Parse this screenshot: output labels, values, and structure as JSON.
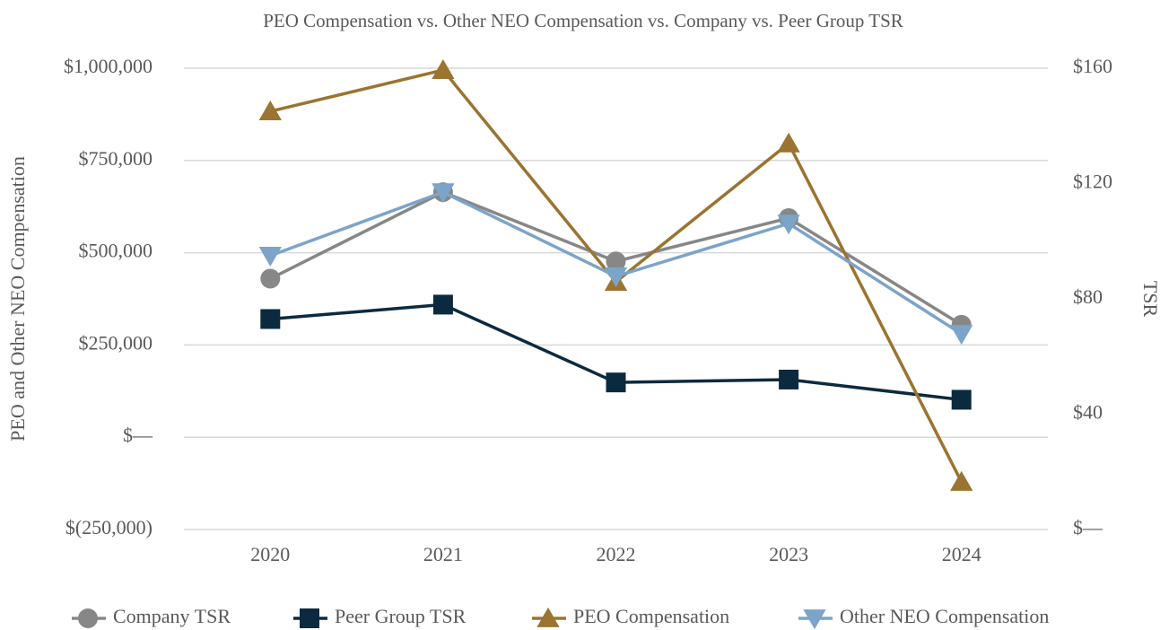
{
  "chart_data": {
    "type": "line",
    "title": "PEO Compensation vs. Other NEO Compensation vs. Company vs. Peer Group TSR",
    "ylabel": "PEO and Other NEO Compensation",
    "y2label": "TSR",
    "categories": [
      "2020",
      "2021",
      "2022",
      "2023",
      "2024"
    ],
    "ylim": [
      -250000,
      1000000
    ],
    "yticks": [
      {
        "value": -250000,
        "label": "$(250,000)"
      },
      {
        "value": 0,
        "label": "$—"
      },
      {
        "value": 250000,
        "label": "$250,000"
      },
      {
        "value": 500000,
        "label": "$500,000"
      },
      {
        "value": 750000,
        "label": "$750,000"
      },
      {
        "value": 1000000,
        "label": "$1,000,000"
      }
    ],
    "y2lim": [
      0,
      160
    ],
    "y2ticks": [
      {
        "value": 0,
        "label": "$—"
      },
      {
        "value": 40,
        "label": "$40"
      },
      {
        "value": 80,
        "label": "$80"
      },
      {
        "value": 120,
        "label": "$120"
      },
      {
        "value": 160,
        "label": "$160"
      }
    ],
    "grid": true,
    "legend": "bottom",
    "series": [
      {
        "name": "Company TSR",
        "color": "#878787",
        "marker": "circle",
        "axis": "y2",
        "values": [
          87,
          117,
          93,
          108,
          71
        ]
      },
      {
        "name": "Peer Group TSR",
        "color": "#0c2a3f",
        "marker": "square",
        "axis": "y2",
        "values": [
          73,
          78,
          51,
          52,
          45
        ]
      },
      {
        "name": "PEO Compensation",
        "color": "#9a7430",
        "marker": "triangle-up",
        "values": [
          883000,
          995000,
          421000,
          796000,
          -121000
        ]
      },
      {
        "name": "Other NEO Compensation",
        "color": "#7ca4c9",
        "marker": "triangle-down",
        "values": [
          492000,
          664000,
          436000,
          579000,
          280000
        ]
      }
    ]
  }
}
